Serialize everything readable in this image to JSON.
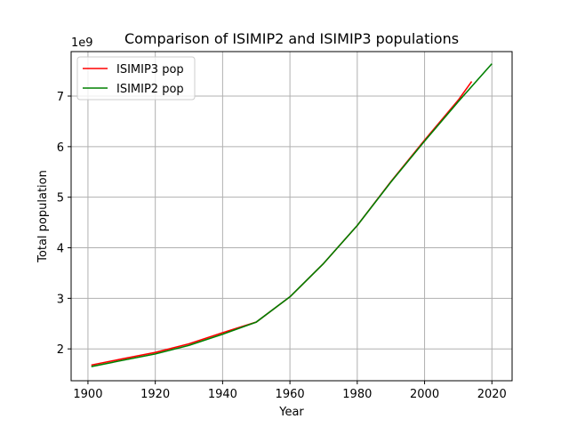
{
  "chart_data": {
    "type": "line",
    "title": "Comparison of ISIMIP2 and ISIMIP3 populations",
    "xlabel": "Year",
    "ylabel": "Total population",
    "y_offset_label": "1e9",
    "xlim": [
      1895,
      2026
    ],
    "ylim": [
      1.37,
      7.88
    ],
    "x_ticks": [
      1900,
      1920,
      1940,
      1960,
      1980,
      2000,
      2020
    ],
    "y_ticks": [
      2,
      3,
      4,
      5,
      6,
      7
    ],
    "y_tick_labels": [
      "2",
      "3",
      "4",
      "5",
      "6",
      "7"
    ],
    "grid": true,
    "legend_position": "top-left",
    "series": [
      {
        "name": "ISIMIP3 pop",
        "color": "#ff0000",
        "x": [
          1901,
          1910,
          1920,
          1930,
          1940,
          1950,
          1960,
          1970,
          1980,
          1990,
          2000,
          2010,
          2014
        ],
        "y": [
          1.68,
          1.8,
          1.93,
          2.1,
          2.32,
          2.53,
          3.03,
          3.69,
          4.44,
          5.31,
          6.13,
          6.92,
          7.29
        ]
      },
      {
        "name": "ISIMIP2 pop",
        "color": "#008000",
        "x": [
          1901,
          1910,
          1920,
          1930,
          1940,
          1950,
          1960,
          1970,
          1980,
          1990,
          2000,
          2010,
          2020
        ],
        "y": [
          1.65,
          1.77,
          1.9,
          2.07,
          2.29,
          2.53,
          3.03,
          3.69,
          4.44,
          5.3,
          6.11,
          6.89,
          7.64
        ]
      }
    ]
  }
}
